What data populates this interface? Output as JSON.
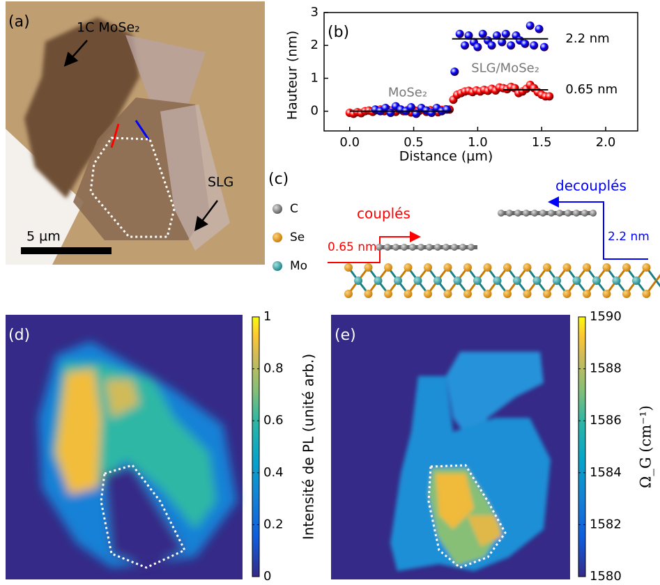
{
  "panel_labels": [
    "(a)",
    "(b)",
    "(c)",
    "(d)",
    "(e)"
  ],
  "micrograph": {
    "labels": [
      "1C MoSe₂",
      "SLG"
    ],
    "scale_bar": "5 µm"
  },
  "schematic": {
    "legend": [
      "C",
      "Se",
      "Mo"
    ],
    "coupled": "couplés",
    "decoupled": "decouplés",
    "coupled_height": "0.65 nm",
    "decoupled_height": "2.2 nm"
  },
  "chart_data": [
    {
      "type": "scatter",
      "xlabel": "Distance (µm)",
      "ylabel": "Hauteur (nm)",
      "xlim": [
        -0.2,
        2.25
      ],
      "ylim": [
        -0.6,
        3
      ],
      "xticks": [
        {
          "value": 0,
          "label": "0.0"
        },
        0.5,
        {
          "value": 1,
          "label": "1.0"
        },
        1.5,
        {
          "value": 2,
          "label": "2.0"
        }
      ],
      "yticks": [
        0,
        1,
        2,
        3
      ],
      "annotations": [
        "MoSe₂",
        "SLG/MoSe₂"
      ],
      "fits": [
        {
          "value": 0,
          "x": [
            0,
            0.8
          ]
        },
        {
          "value": 0.65,
          "label": "0.65 nm",
          "x": [
            1.2,
            1.55
          ]
        },
        {
          "value": 2.2,
          "label": "2.2 nm",
          "x": [
            0.8,
            1.55
          ]
        }
      ],
      "series": [
        {
          "color": "#ff0000",
          "x": [
            0.0,
            0.03,
            0.06,
            0.09,
            0.12,
            0.15,
            0.18,
            0.21,
            0.24,
            0.27,
            0.3,
            0.33,
            0.36,
            0.39,
            0.42,
            0.45,
            0.48,
            0.51,
            0.54,
            0.57,
            0.6,
            0.63,
            0.66,
            0.69,
            0.72,
            0.75,
            0.78,
            0.81,
            0.84,
            0.87,
            0.9,
            0.93,
            0.96,
            0.99,
            1.02,
            1.05,
            1.08,
            1.11,
            1.14,
            1.17,
            1.2,
            1.23,
            1.26,
            1.29,
            1.32,
            1.35,
            1.38,
            1.41,
            1.44,
            1.47,
            1.5,
            1.53,
            1.56
          ],
          "values": [
            -0.05,
            -0.08,
            -0.03,
            -0.06,
            0.0,
            0.02,
            -0.02,
            0.03,
            0.05,
            0.0,
            0.04,
            0.02,
            -0.02,
            0.05,
            0.0,
            0.03,
            -0.04,
            0.02,
            0.0,
            0.05,
            -0.02,
            0.03,
            0.0,
            -0.03,
            0.04,
            0.06,
            0.05,
            0.35,
            0.5,
            0.55,
            0.6,
            0.62,
            0.58,
            0.63,
            0.6,
            0.65,
            0.62,
            0.68,
            0.63,
            0.72,
            0.7,
            0.67,
            0.74,
            0.7,
            0.55,
            0.6,
            0.68,
            0.8,
            0.7,
            0.58,
            0.5,
            0.45,
            0.45
          ]
        },
        {
          "color": "#0000ff",
          "x": [
            0.2,
            0.24,
            0.28,
            0.32,
            0.36,
            0.4,
            0.44,
            0.48,
            0.52,
            0.56,
            0.6,
            0.64,
            0.68,
            0.72,
            0.76,
            0.82,
            0.86,
            0.9,
            0.93,
            0.97,
            1.0,
            1.04,
            1.08,
            1.11,
            1.15,
            1.19,
            1.22,
            1.26,
            1.3,
            1.33,
            1.37,
            1.41,
            1.44,
            1.48,
            1.52
          ],
          "values": [
            0.05,
            0.0,
            0.1,
            -0.05,
            0.15,
            0.05,
            0.0,
            0.12,
            -0.08,
            0.1,
            0.02,
            -0.05,
            0.1,
            0.0,
            0.05,
            1.2,
            2.35,
            2.0,
            2.3,
            2.1,
            1.95,
            2.35,
            2.15,
            2.0,
            2.3,
            2.1,
            2.35,
            2.0,
            2.3,
            2.15,
            2.05,
            2.6,
            2.0,
            2.5,
            1.95
          ]
        }
      ]
    },
    {
      "type": "heatmap",
      "colorbar_label": "Intensité de PL (unité arb.)",
      "clim": [
        0,
        1
      ],
      "cticks": [
        0,
        0.2,
        0.4,
        0.6,
        0.8,
        1
      ]
    },
    {
      "type": "heatmap",
      "colorbar_label": "Ω_G (cm⁻¹)",
      "clim": [
        1580,
        1590
      ],
      "cticks": [
        1580,
        1582,
        1584,
        1586,
        1588,
        1590
      ]
    }
  ]
}
